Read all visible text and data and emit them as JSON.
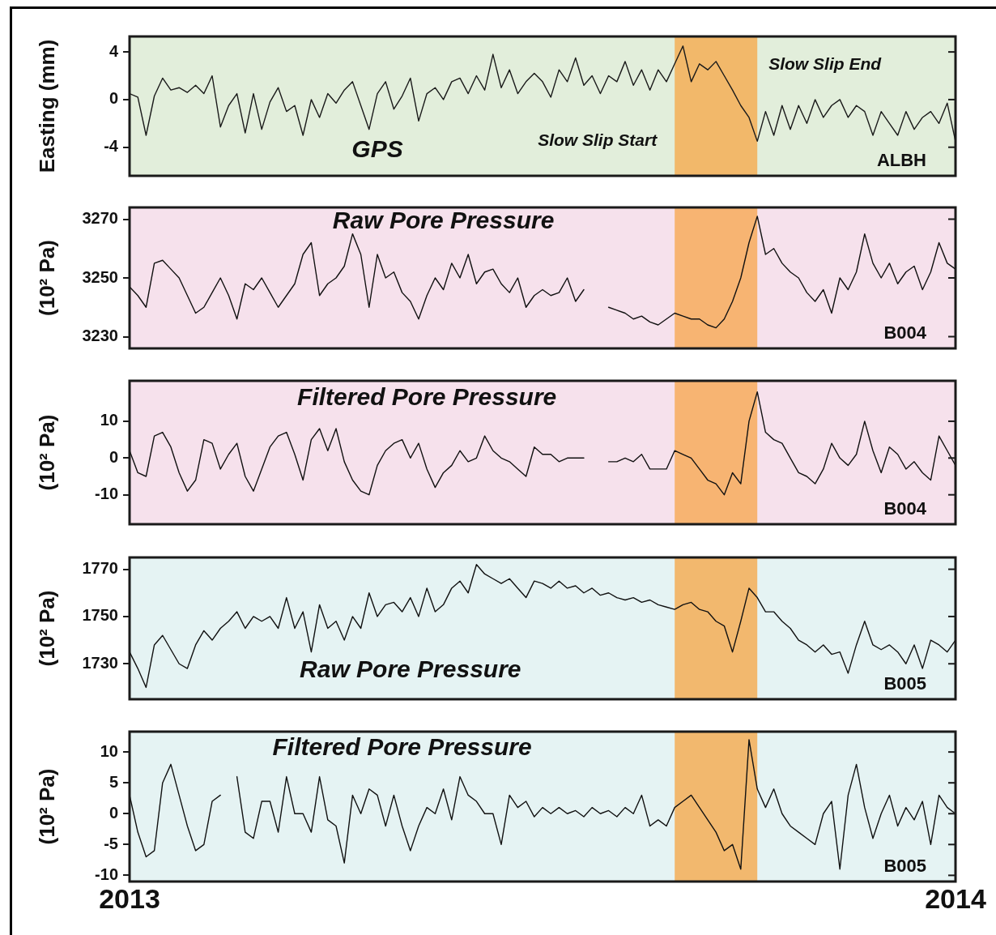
{
  "chart_data": [
    {
      "type": "line",
      "title": "GPS",
      "ylabel": "Easting (mm)",
      "annotations": [
        "ALBH",
        {
          "text": "Slow Slip Start",
          "x": 2013.66,
          "y": -3.5
        },
        {
          "text": "Slow Slip End",
          "x": 2013.76,
          "y": 2.9
        }
      ],
      "xlim": [
        2013,
        2014
      ],
      "ylim": [
        -6.4,
        5.3
      ],
      "yticks": [
        -4,
        0,
        4
      ],
      "tick_labels": "y",
      "bands": [
        {
          "axis": "x",
          "from": 2013.66,
          "to": 2013.76,
          "color": "#f2b86a"
        }
      ],
      "x": [
        2013,
        2013.01,
        2013.02,
        2013.03,
        2013.04,
        2013.05,
        2013.06,
        2013.07,
        2013.08,
        2013.09,
        2013.1,
        2013.11,
        2013.12,
        2013.13,
        2013.14,
        2013.15,
        2013.16,
        2013.17,
        2013.18,
        2013.19,
        2013.2,
        2013.21,
        2013.22,
        2013.23,
        2013.24,
        2013.25,
        2013.26,
        2013.27,
        2013.28,
        2013.29,
        2013.3,
        2013.31,
        2013.32,
        2013.33,
        2013.34,
        2013.35,
        2013.36,
        2013.37,
        2013.38,
        2013.39,
        2013.4,
        2013.41,
        2013.42,
        2013.43,
        2013.44,
        2013.45,
        2013.46,
        2013.47,
        2013.48,
        2013.49,
        2013.5,
        2013.51,
        2013.52,
        2013.53,
        2013.54,
        2013.55,
        2013.56,
        2013.57,
        2013.58,
        2013.59,
        2013.6,
        2013.61,
        2013.62,
        2013.63,
        2013.64,
        2013.65,
        2013.66,
        2013.67,
        2013.68,
        2013.69,
        2013.7,
        2013.71,
        2013.72,
        2013.73,
        2013.74,
        2013.75,
        2013.76,
        2013.77,
        2013.78,
        2013.79,
        2013.8,
        2013.81,
        2013.82,
        2013.83,
        2013.84,
        2013.85,
        2013.86,
        2013.87,
        2013.88,
        2013.89,
        2013.9,
        2013.91,
        2013.92,
        2013.93,
        2013.94,
        2013.95,
        2013.96,
        2013.97,
        2013.98,
        2013.99,
        2014
      ],
      "series": [
        {
          "color": "#1a1a1a",
          "values": [
            0.5,
            0.2,
            -3.0,
            0.3,
            1.8,
            0.8,
            1.0,
            0.6,
            1.2,
            0.5,
            2.0,
            -2.3,
            -0.5,
            0.5,
            -2.8,
            0.5,
            -2.5,
            -0.2,
            1.0,
            -1.0,
            -0.5,
            -3.0,
            0.0,
            -1.5,
            0.5,
            -0.3,
            0.8,
            1.5,
            -0.5,
            -2.5,
            0.5,
            1.5,
            -0.8,
            0.3,
            1.8,
            -1.8,
            0.5,
            1.0,
            0.0,
            1.5,
            1.8,
            0.5,
            2.0,
            0.8,
            3.8,
            1.0,
            2.5,
            0.5,
            1.5,
            2.2,
            1.5,
            0.2,
            2.5,
            1.5,
            3.5,
            1.2,
            2.0,
            0.5,
            2.0,
            1.5,
            3.2,
            1.2,
            2.5,
            0.8,
            2.5,
            1.5,
            3.0,
            4.5,
            1.5,
            3.0,
            2.5,
            3.2,
            2.0,
            0.8,
            -0.5,
            -1.5,
            -3.5,
            -1.0,
            -3.0,
            -0.5,
            -2.5,
            -0.5,
            -2.0,
            0.0,
            -1.5,
            -0.5,
            0.0,
            -1.5,
            -0.5,
            -1.0,
            -3.0,
            -1.0,
            -2.0,
            -3.0,
            -1.0,
            -2.5,
            -1.5,
            -1.0,
            -2.0,
            -0.3,
            -3.5
          ]
        }
      ]
    },
    {
      "type": "line",
      "title": "Raw Pore Pressure",
      "ylabel": "(10² Pa)",
      "annotations": [
        "B004"
      ],
      "xlim": [
        2013,
        2014
      ],
      "ylim": [
        3226,
        3274
      ],
      "yticks": [
        3230,
        3250,
        3270
      ],
      "tick_labels": "y",
      "bands": [
        {
          "axis": "x",
          "from": 2013.66,
          "to": 2013.76,
          "color": "#f7b472"
        }
      ],
      "x": [
        2013,
        2013.01,
        2013.02,
        2013.03,
        2013.04,
        2013.05,
        2013.06,
        2013.07,
        2013.08,
        2013.09,
        2013.1,
        2013.11,
        2013.12,
        2013.13,
        2013.14,
        2013.15,
        2013.16,
        2013.17,
        2013.18,
        2013.19,
        2013.2,
        2013.21,
        2013.22,
        2013.23,
        2013.24,
        2013.25,
        2013.26,
        2013.27,
        2013.28,
        2013.29,
        2013.3,
        2013.31,
        2013.32,
        2013.33,
        2013.34,
        2013.35,
        2013.36,
        2013.37,
        2013.38,
        2013.39,
        2013.4,
        2013.41,
        2013.42,
        2013.43,
        2013.44,
        2013.45,
        2013.46,
        2013.47,
        2013.48,
        2013.49,
        2013.5,
        2013.51,
        2013.52,
        2013.53,
        2013.54,
        2013.55,
        2013.56,
        2013.57,
        2013.58,
        2013.59,
        2013.6,
        2013.61,
        2013.62,
        2013.63,
        2013.64,
        2013.65,
        2013.66,
        2013.67,
        2013.68,
        2013.69,
        2013.7,
        2013.71,
        2013.72,
        2013.73,
        2013.74,
        2013.75,
        2013.76,
        2013.77,
        2013.78,
        2013.79,
        2013.8,
        2013.81,
        2013.82,
        2013.83,
        2013.84,
        2013.85,
        2013.86,
        2013.87,
        2013.88,
        2013.89,
        2013.9,
        2013.91,
        2013.92,
        2013.93,
        2013.94,
        2013.95,
        2013.96,
        2013.97,
        2013.98,
        2013.99,
        2014
      ],
      "series": [
        {
          "color": "#111111",
          "values": [
            3247,
            3244,
            3240,
            3255,
            3256,
            3253,
            3250,
            3244,
            3238,
            3240,
            3245,
            3250,
            3244,
            3236,
            3248,
            3246,
            3250,
            3245,
            3240,
            3244,
            3248,
            3258,
            3262,
            3244,
            3248,
            3250,
            3254,
            3265,
            3258,
            3240,
            3258,
            3250,
            3252,
            3245,
            3242,
            3236,
            3244,
            3250,
            3246,
            3255,
            3250,
            3258,
            3248,
            3252,
            3253,
            3248,
            3245,
            3250,
            3240,
            3244,
            3246,
            3244,
            3245,
            3250,
            3242,
            3246,
            null,
            null,
            3240,
            3239,
            3238,
            3236,
            3237,
            3235,
            3234,
            3236,
            3238,
            3237,
            3236,
            3236,
            3234,
            3233,
            3236,
            3242,
            3250,
            3262,
            3271,
            3258,
            3260,
            3255,
            3252,
            3250,
            3245,
            3242,
            3246,
            3238,
            3250,
            3246,
            3252,
            3265,
            3255,
            3250,
            3255,
            3248,
            3252,
            3254,
            3246,
            3252,
            3262,
            3255,
            3253
          ]
        }
      ]
    },
    {
      "type": "line",
      "title": "Filtered Pore Pressure",
      "ylabel": "(10² Pa)",
      "annotations": [
        "B004"
      ],
      "xlim": [
        2013,
        2014
      ],
      "ylim": [
        -18,
        21
      ],
      "yticks": [
        -10,
        0,
        10
      ],
      "tick_labels": "y",
      "bands": [
        {
          "axis": "x",
          "from": 2013.66,
          "to": 2013.76,
          "color": "#f7b472"
        }
      ],
      "x": [
        2013,
        2013.01,
        2013.02,
        2013.03,
        2013.04,
        2013.05,
        2013.06,
        2013.07,
        2013.08,
        2013.09,
        2013.1,
        2013.11,
        2013.12,
        2013.13,
        2013.14,
        2013.15,
        2013.16,
        2013.17,
        2013.18,
        2013.19,
        2013.2,
        2013.21,
        2013.22,
        2013.23,
        2013.24,
        2013.25,
        2013.26,
        2013.27,
        2013.28,
        2013.29,
        2013.3,
        2013.31,
        2013.32,
        2013.33,
        2013.34,
        2013.35,
        2013.36,
        2013.37,
        2013.38,
        2013.39,
        2013.4,
        2013.41,
        2013.42,
        2013.43,
        2013.44,
        2013.45,
        2013.46,
        2013.47,
        2013.48,
        2013.49,
        2013.5,
        2013.51,
        2013.52,
        2013.53,
        2013.54,
        2013.55,
        2013.56,
        2013.57,
        2013.58,
        2013.59,
        2013.6,
        2013.61,
        2013.62,
        2013.63,
        2013.64,
        2013.65,
        2013.66,
        2013.67,
        2013.68,
        2013.69,
        2013.7,
        2013.71,
        2013.72,
        2013.73,
        2013.74,
        2013.75,
        2013.76,
        2013.77,
        2013.78,
        2013.79,
        2013.8,
        2013.81,
        2013.82,
        2013.83,
        2013.84,
        2013.85,
        2013.86,
        2013.87,
        2013.88,
        2013.89,
        2013.9,
        2013.91,
        2013.92,
        2013.93,
        2013.94,
        2013.95,
        2013.96,
        2013.97,
        2013.98,
        2013.99,
        2014
      ],
      "series": [
        {
          "color": "#111111",
          "values": [
            2,
            -4,
            -5,
            6,
            7,
            3,
            -4,
            -9,
            -6,
            5,
            4,
            -3,
            1,
            4,
            -5,
            -9,
            -3,
            3,
            6,
            7,
            1,
            -6,
            5,
            8,
            2,
            8,
            -1,
            -6,
            -9,
            -10,
            -2,
            2,
            4,
            5,
            0,
            4,
            -3,
            -8,
            -4,
            -2,
            2,
            -1,
            0,
            6,
            2,
            0,
            -1,
            -3,
            -5,
            3,
            1,
            1,
            -1,
            0,
            0,
            0,
            null,
            null,
            -1,
            -1,
            0,
            -1,
            1,
            -3,
            -3,
            -3,
            2,
            1,
            0,
            -3,
            -6,
            -7,
            -10,
            -4,
            -7,
            10,
            18,
            7,
            5,
            4,
            0,
            -4,
            -5,
            -7,
            -3,
            4,
            0,
            -2,
            1,
            10,
            2,
            -4,
            3,
            1,
            -3,
            -1,
            -4,
            -6,
            6,
            2,
            -2
          ]
        }
      ]
    },
    {
      "type": "line",
      "title": "Raw Pore Pressure",
      "ylabel": "(10² Pa)",
      "annotations": [
        "B005"
      ],
      "xlim": [
        2013,
        2014
      ],
      "ylim": [
        1715,
        1775
      ],
      "yticks": [
        1730,
        1750,
        1770
      ],
      "tick_labels": "y",
      "bands": [
        {
          "axis": "x",
          "from": 2013.66,
          "to": 2013.76,
          "color": "#f2b86e"
        }
      ],
      "x": [
        2013,
        2013.01,
        2013.02,
        2013.03,
        2013.04,
        2013.05,
        2013.06,
        2013.07,
        2013.08,
        2013.09,
        2013.1,
        2013.11,
        2013.12,
        2013.13,
        2013.14,
        2013.15,
        2013.16,
        2013.17,
        2013.18,
        2013.19,
        2013.2,
        2013.21,
        2013.22,
        2013.23,
        2013.24,
        2013.25,
        2013.26,
        2013.27,
        2013.28,
        2013.29,
        2013.3,
        2013.31,
        2013.32,
        2013.33,
        2013.34,
        2013.35,
        2013.36,
        2013.37,
        2013.38,
        2013.39,
        2013.4,
        2013.41,
        2013.42,
        2013.43,
        2013.44,
        2013.45,
        2013.46,
        2013.47,
        2013.48,
        2013.49,
        2013.5,
        2013.51,
        2013.52,
        2013.53,
        2013.54,
        2013.55,
        2013.56,
        2013.57,
        2013.58,
        2013.59,
        2013.6,
        2013.61,
        2013.62,
        2013.63,
        2013.64,
        2013.65,
        2013.66,
        2013.67,
        2013.68,
        2013.69,
        2013.7,
        2013.71,
        2013.72,
        2013.73,
        2013.74,
        2013.75,
        2013.76,
        2013.77,
        2013.78,
        2013.79,
        2013.8,
        2013.81,
        2013.82,
        2013.83,
        2013.84,
        2013.85,
        2013.86,
        2013.87,
        2013.88,
        2013.89,
        2013.9,
        2013.91,
        2013.92,
        2013.93,
        2013.94,
        2013.95,
        2013.96,
        2013.97,
        2013.98,
        2013.99,
        2014
      ],
      "series": [
        {
          "color": "#111111",
          "values": [
            1735,
            1728,
            1720,
            1738,
            1742,
            1736,
            1730,
            1728,
            1738,
            1744,
            1740,
            1745,
            1748,
            1752,
            1745,
            1750,
            1748,
            1750,
            1745,
            1758,
            1745,
            1752,
            1735,
            1755,
            1745,
            1748,
            1740,
            1750,
            1745,
            1760,
            1750,
            1755,
            1756,
            1752,
            1758,
            1750,
            1762,
            1752,
            1755,
            1762,
            1765,
            1760,
            1772,
            1768,
            1766,
            1764,
            1766,
            1762,
            1758,
            1765,
            1764,
            1762,
            1765,
            1762,
            1763,
            1760,
            1762,
            1759,
            1760,
            1758,
            1757,
            1758,
            1756,
            1757,
            1755,
            1754,
            1753,
            1755,
            1756,
            1753,
            1752,
            1748,
            1746,
            1735,
            1748,
            1762,
            1758,
            1752,
            1752,
            1748,
            1745,
            1740,
            1738,
            1735,
            1738,
            1734,
            1735,
            1726,
            1738,
            1748,
            1738,
            1736,
            1738,
            1735,
            1730,
            1738,
            1728,
            1740,
            1738,
            1735,
            1740
          ]
        }
      ]
    },
    {
      "type": "line",
      "title": "Filtered Pore Pressure",
      "ylabel": "(10² Pa)",
      "annotations": [
        "B005"
      ],
      "xlim": [
        2013,
        2014
      ],
      "xticks": [
        2013,
        2014
      ],
      "ylim": [
        -11,
        13.3
      ],
      "yticks": [
        -10,
        -5,
        0,
        5,
        10
      ],
      "bands": [
        {
          "axis": "x",
          "from": 2013.66,
          "to": 2013.76,
          "color": "#f2b86e"
        }
      ],
      "x": [
        2013,
        2013.01,
        2013.02,
        2013.03,
        2013.04,
        2013.05,
        2013.06,
        2013.07,
        2013.08,
        2013.09,
        2013.1,
        2013.11,
        2013.12,
        2013.13,
        2013.14,
        2013.15,
        2013.16,
        2013.17,
        2013.18,
        2013.19,
        2013.2,
        2013.21,
        2013.22,
        2013.23,
        2013.24,
        2013.25,
        2013.26,
        2013.27,
        2013.28,
        2013.29,
        2013.3,
        2013.31,
        2013.32,
        2013.33,
        2013.34,
        2013.35,
        2013.36,
        2013.37,
        2013.38,
        2013.39,
        2013.4,
        2013.41,
        2013.42,
        2013.43,
        2013.44,
        2013.45,
        2013.46,
        2013.47,
        2013.48,
        2013.49,
        2013.5,
        2013.51,
        2013.52,
        2013.53,
        2013.54,
        2013.55,
        2013.56,
        2013.57,
        2013.58,
        2013.59,
        2013.6,
        2013.61,
        2013.62,
        2013.63,
        2013.64,
        2013.65,
        2013.66,
        2013.67,
        2013.68,
        2013.69,
        2013.7,
        2013.71,
        2013.72,
        2013.73,
        2013.74,
        2013.75,
        2013.76,
        2013.77,
        2013.78,
        2013.79,
        2013.8,
        2013.81,
        2013.82,
        2013.83,
        2013.84,
        2013.85,
        2013.86,
        2013.87,
        2013.88,
        2013.89,
        2013.9,
        2013.91,
        2013.92,
        2013.93,
        2013.94,
        2013.95,
        2013.96,
        2013.97,
        2013.98,
        2013.99,
        2014
      ],
      "series": [
        {
          "color": "#111111",
          "values": [
            3,
            -3,
            -7,
            -6,
            5,
            8,
            3,
            -2,
            -6,
            -5,
            2,
            3,
            null,
            6,
            -3,
            -4,
            2,
            2,
            -3,
            6,
            0,
            0,
            -3,
            6,
            -1,
            -2,
            -8,
            3,
            0,
            4,
            3,
            -2,
            3,
            -2,
            -6,
            -2,
            1,
            0,
            4,
            -1,
            6,
            3,
            2,
            0,
            0,
            -5,
            3,
            1,
            2,
            -0.5,
            1,
            0,
            1,
            0,
            0.5,
            -0.5,
            1,
            0,
            0.5,
            -0.5,
            1,
            0,
            3,
            -2,
            -1,
            -2,
            1,
            2,
            3,
            1,
            -1,
            -3,
            -6,
            -5,
            -9,
            12,
            4,
            1,
            4,
            0,
            -2,
            -3,
            -4,
            -5,
            0,
            2,
            -9,
            3,
            8,
            1,
            -4,
            0,
            3,
            -2,
            1,
            -1,
            2,
            -5,
            3,
            1,
            0
          ]
        }
      ]
    }
  ]
}
